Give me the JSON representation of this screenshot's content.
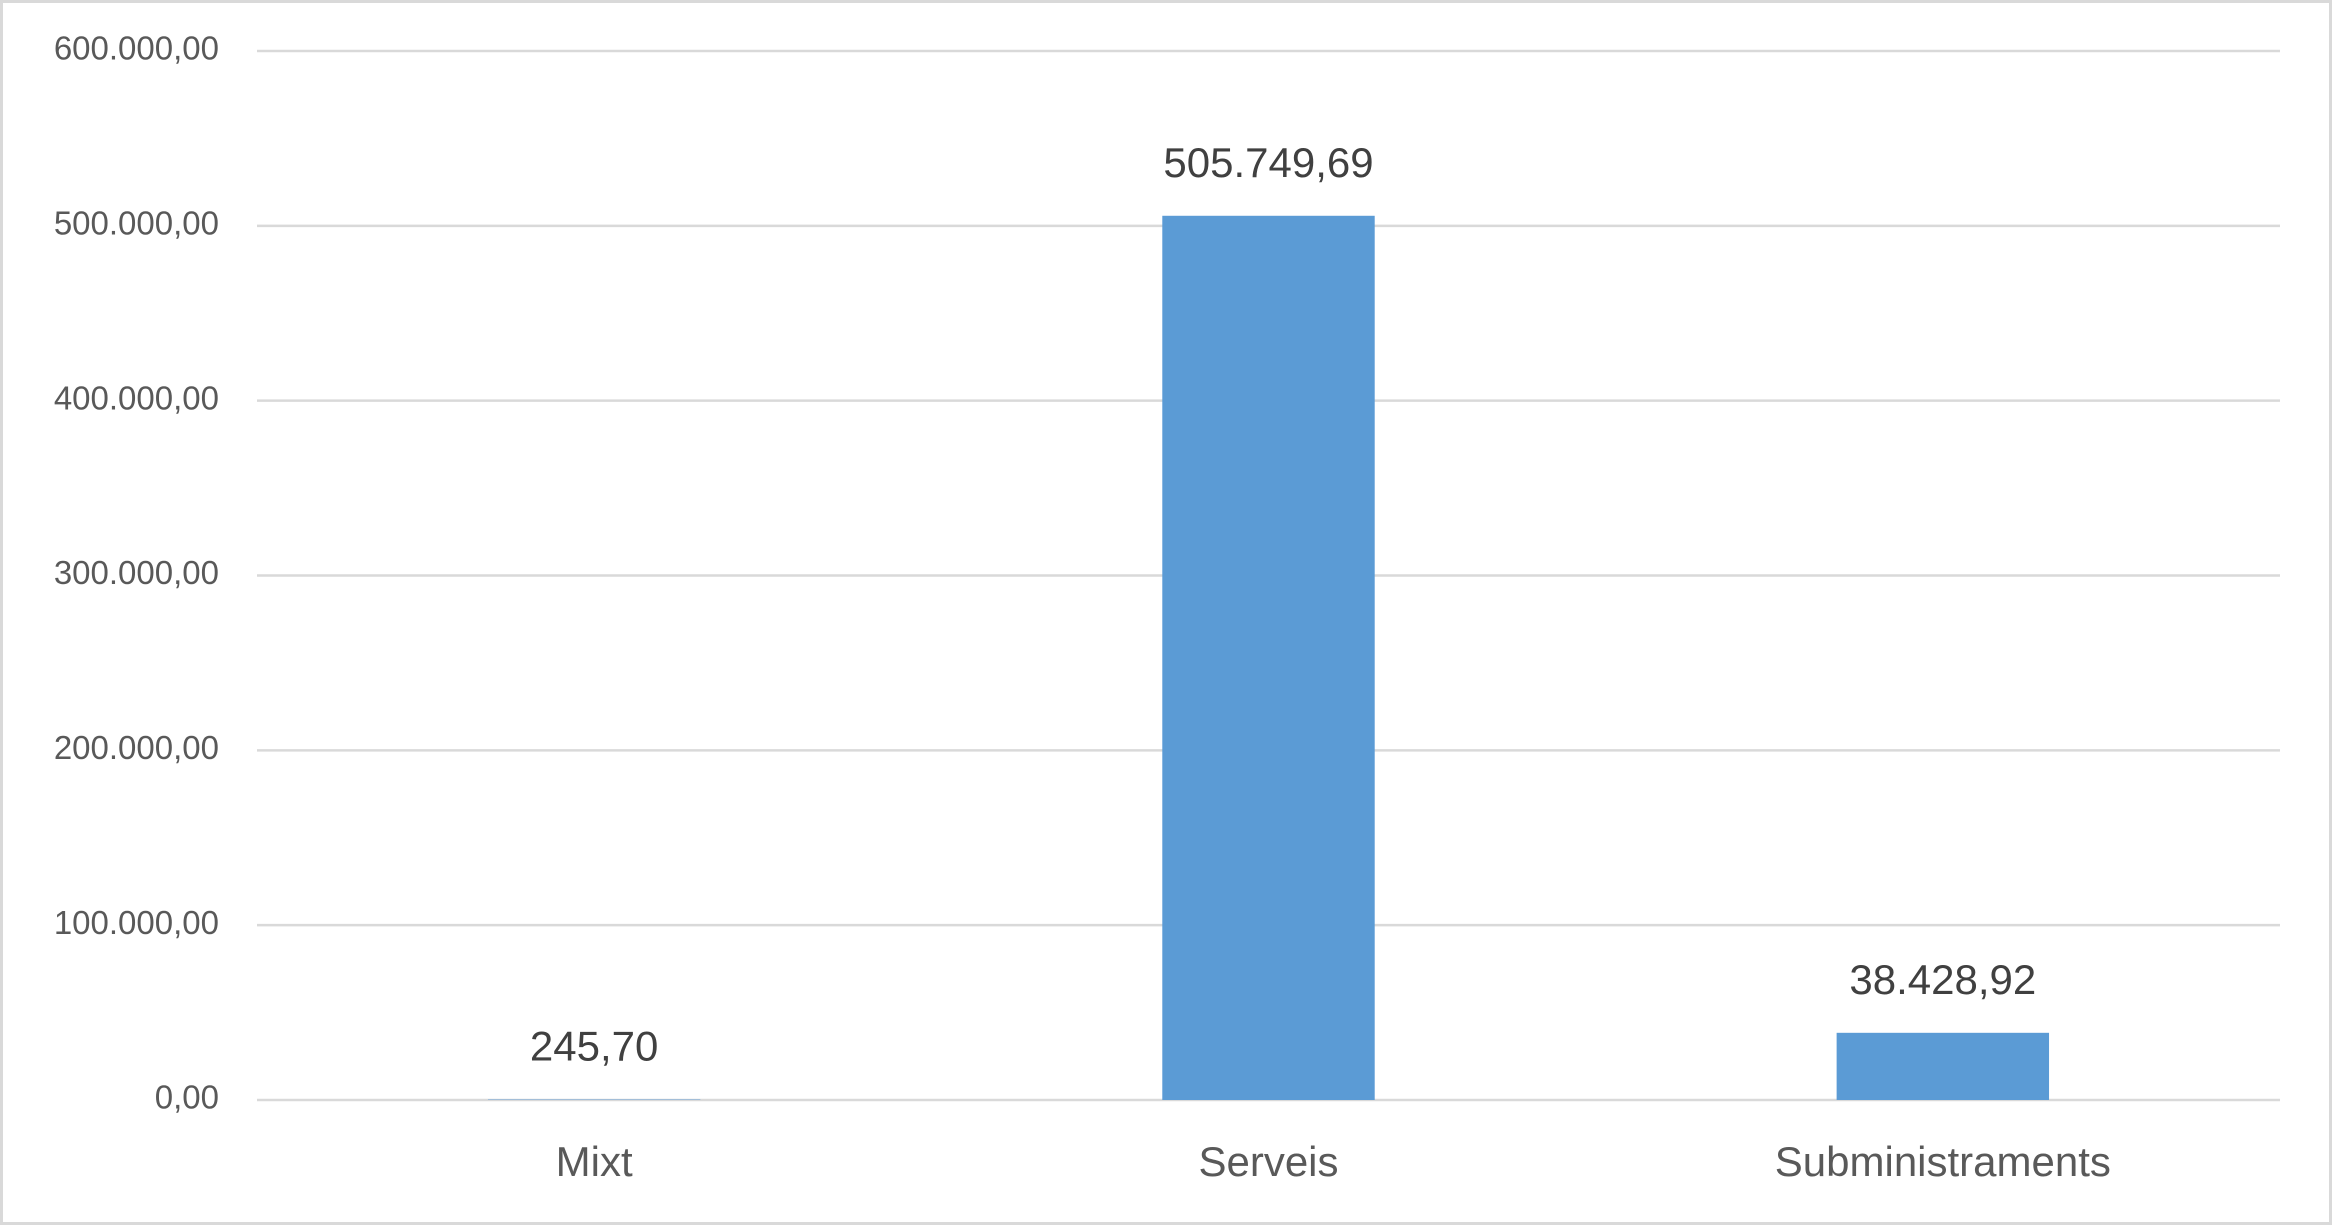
{
  "chart_data": {
    "type": "bar",
    "categories": [
      "Mixt",
      "Serveis",
      "Subministraments"
    ],
    "values": [
      245.7,
      505749.69,
      38428.92
    ],
    "value_labels": [
      "245,70",
      "505.749,69",
      "38.428,92"
    ],
    "color": "#5b9bd5",
    "ylim": [
      0,
      600000
    ],
    "yticks": [
      {
        "value": 0,
        "label": "0,00"
      },
      {
        "value": 100000,
        "label": "100.000,00"
      },
      {
        "value": 200000,
        "label": "200.000,00"
      },
      {
        "value": 300000,
        "label": "300.000,00"
      },
      {
        "value": 400000,
        "label": "400.000,00"
      },
      {
        "value": 500000,
        "label": "500.000,00"
      },
      {
        "value": 600000,
        "label": "600.000,00"
      }
    ],
    "grid": true
  }
}
